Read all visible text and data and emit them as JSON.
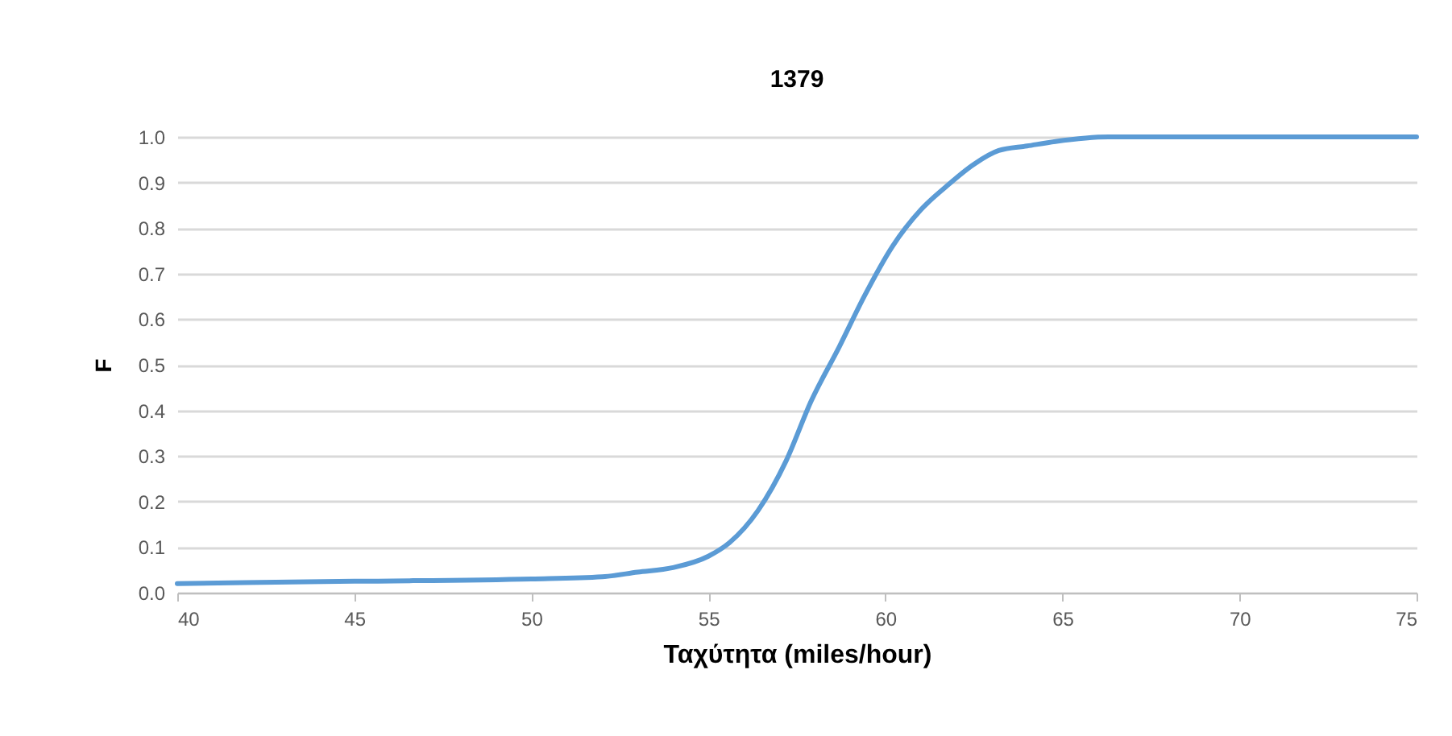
{
  "chart_data": {
    "type": "line",
    "title": "1379",
    "xlabel": "Ταχύτητα (miles/hour)",
    "ylabel": "F",
    "x": [
      40,
      45,
      50,
      52,
      53,
      54,
      55,
      55.6,
      56.4,
      57.2,
      57.9,
      58.7,
      59.4,
      60.2,
      61,
      61.7,
      62.5,
      63.2,
      64,
      64.8,
      66.3,
      68,
      70,
      75
    ],
    "series": [
      {
        "color": "#5b9bd5",
        "values": [
          0.02,
          0.025,
          0.03,
          0.035,
          0.045,
          0.055,
          0.08,
          0.11,
          0.18,
          0.29,
          0.42,
          0.54,
          0.65,
          0.76,
          0.84,
          0.89,
          0.94,
          0.97,
          0.98,
          0.99,
          1.0,
          1.0,
          1.0,
          1.0
        ]
      }
    ],
    "xlim": [
      40,
      75
    ],
    "xticks": [
      40,
      45,
      50,
      55,
      60,
      65,
      70,
      75
    ],
    "ylim": [
      0,
      1
    ],
    "yticks": [
      {
        "value": 0,
        "label": "0.0"
      },
      {
        "value": 0.1,
        "label": "0.1"
      },
      {
        "value": 0.2,
        "label": "0.2"
      },
      {
        "value": 0.3,
        "label": "0.3"
      },
      {
        "value": 0.4,
        "label": "0.4"
      },
      {
        "value": 0.5,
        "label": "0.5"
      },
      {
        "value": 0.6,
        "label": "0.6"
      },
      {
        "value": 0.7,
        "label": "0.7"
      },
      {
        "value": 0.8,
        "label": "0.8"
      },
      {
        "value": 0.9,
        "label": "0.9"
      },
      {
        "value": 1,
        "label": "1.0"
      }
    ],
    "grid": "y",
    "marker": "none",
    "line_style": "solid"
  }
}
